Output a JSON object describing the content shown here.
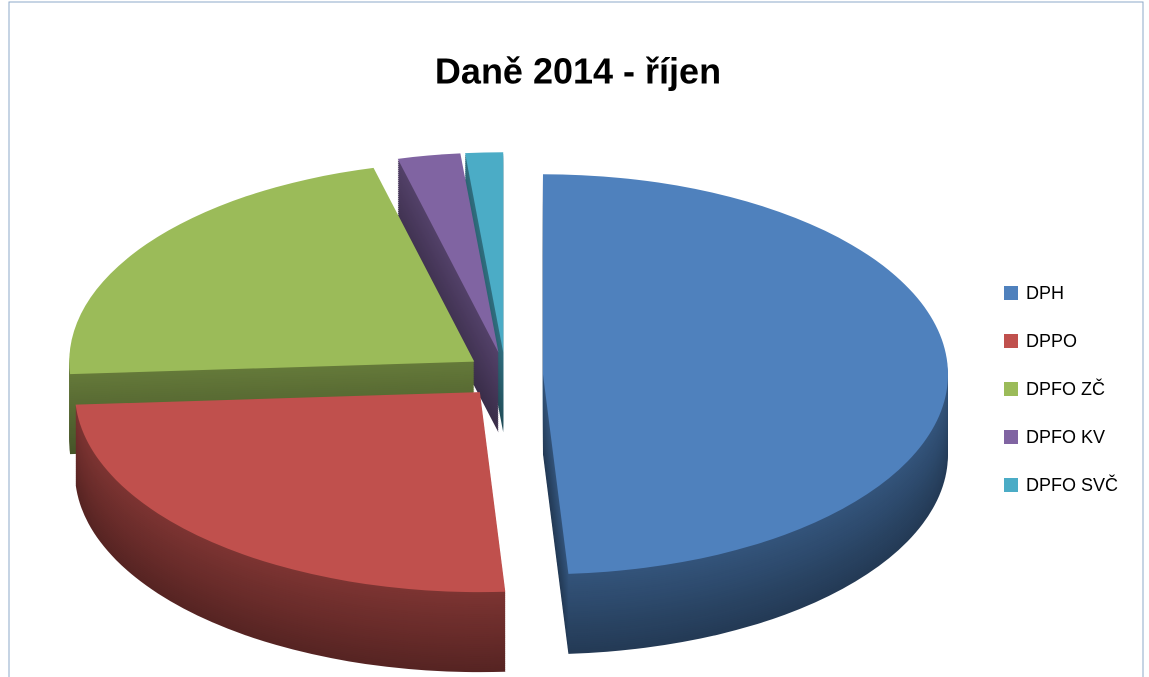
{
  "chart_data": {
    "type": "pie3d",
    "title": "Daně 2014 - říjen",
    "categories": [
      "DPH",
      "DPPO",
      "DPFO ZČ",
      "DPFO KV",
      "DPFO SVČ"
    ],
    "values": [
      49,
      25,
      22,
      2.5,
      1.5
    ],
    "colors": [
      "#4f81bd",
      "#c0504d",
      "#9bbb59",
      "#8064a2",
      "#4bacc6"
    ],
    "legend": "right"
  }
}
